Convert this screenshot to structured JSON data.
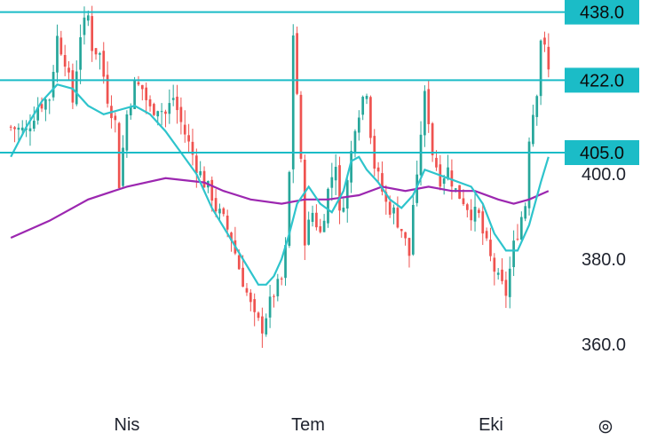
{
  "chart_data": {
    "type": "candlestick",
    "title": "",
    "xlabel": "",
    "ylabel": "",
    "ylim": [
      350,
      441
    ],
    "x_tick_labels": [
      "Nis",
      "Tem",
      "Eki"
    ],
    "y_tick_labels": [
      "360.0",
      "380.0",
      "400.0"
    ],
    "y_ticks": [
      360,
      380,
      400
    ],
    "horizontal_levels": [
      {
        "label": "438.0",
        "value": 438
      },
      {
        "label": "422.0",
        "value": 422
      },
      {
        "label": "405.0",
        "value": 405
      }
    ],
    "colors": {
      "up": "#26a69a",
      "down": "#ef5350",
      "level": "#1bbcc7",
      "ma_fast": "#2ec4cc",
      "ma_slow": "#9c27b0",
      "text": "#1e222d"
    },
    "close_path": [
      [
        0,
        411
      ],
      [
        4,
        410
      ],
      [
        7,
        416
      ],
      [
        10,
        418
      ],
      [
        12,
        432
      ],
      [
        14,
        427
      ],
      [
        16,
        417
      ],
      [
        18,
        433
      ],
      [
        20,
        437
      ],
      [
        21,
        430
      ],
      [
        23,
        428
      ],
      [
        25,
        418
      ],
      [
        27,
        412
      ],
      [
        28,
        398
      ],
      [
        30,
        414
      ],
      [
        32,
        421
      ],
      [
        34,
        420
      ],
      [
        36,
        415
      ],
      [
        38,
        416
      ],
      [
        40,
        414
      ],
      [
        42,
        418
      ],
      [
        44,
        412
      ],
      [
        46,
        407
      ],
      [
        48,
        402
      ],
      [
        50,
        398
      ],
      [
        52,
        395
      ],
      [
        53,
        392
      ],
      [
        55,
        389
      ],
      [
        57,
        385
      ],
      [
        59,
        378
      ],
      [
        61,
        372
      ],
      [
        63,
        366
      ],
      [
        65,
        364
      ],
      [
        66,
        367
      ],
      [
        68,
        372
      ],
      [
        70,
        375
      ],
      [
        71,
        382
      ],
      [
        72,
        400
      ],
      [
        73,
        433
      ],
      [
        74,
        419
      ],
      [
        75,
        402
      ],
      [
        76,
        385
      ],
      [
        78,
        391
      ],
      [
        80,
        386
      ],
      [
        82,
        396
      ],
      [
        84,
        403
      ],
      [
        85,
        390
      ],
      [
        87,
        398
      ],
      [
        89,
        412
      ],
      [
        91,
        418
      ],
      [
        92,
        420
      ],
      [
        93,
        410
      ],
      [
        94,
        402
      ],
      [
        96,
        396
      ],
      [
        97,
        393
      ],
      [
        99,
        391
      ],
      [
        101,
        387
      ],
      [
        103,
        381
      ],
      [
        104,
        393
      ],
      [
        105,
        398
      ],
      [
        106,
        410
      ],
      [
        107,
        418
      ],
      [
        108,
        413
      ],
      [
        109,
        405
      ],
      [
        111,
        399
      ],
      [
        113,
        401
      ],
      [
        115,
        396
      ],
      [
        117,
        394
      ],
      [
        119,
        391
      ],
      [
        121,
        390
      ],
      [
        122,
        386
      ],
      [
        124,
        380
      ],
      [
        126,
        375
      ],
      [
        128,
        372
      ],
      [
        130,
        383
      ],
      [
        132,
        390
      ],
      [
        133,
        393
      ],
      [
        134,
        409
      ],
      [
        136,
        420
      ],
      [
        137,
        432
      ],
      [
        138,
        429
      ],
      [
        139,
        424
      ]
    ],
    "ma_fast": [
      [
        0,
        404
      ],
      [
        4,
        411
      ],
      [
        8,
        417
      ],
      [
        12,
        421
      ],
      [
        16,
        420
      ],
      [
        20,
        416
      ],
      [
        24,
        414
      ],
      [
        28,
        415
      ],
      [
        32,
        416
      ],
      [
        36,
        414
      ],
      [
        40,
        410
      ],
      [
        44,
        405
      ],
      [
        48,
        400
      ],
      [
        52,
        392
      ],
      [
        56,
        386
      ],
      [
        60,
        380
      ],
      [
        64,
        374
      ],
      [
        66,
        374
      ],
      [
        68,
        376
      ],
      [
        70,
        380
      ],
      [
        72,
        386
      ],
      [
        74,
        393
      ],
      [
        77,
        397
      ],
      [
        80,
        393
      ],
      [
        83,
        391
      ],
      [
        86,
        396
      ],
      [
        88,
        403
      ],
      [
        90,
        404
      ],
      [
        92,
        401
      ],
      [
        95,
        398
      ],
      [
        98,
        394
      ],
      [
        101,
        392
      ],
      [
        104,
        395
      ],
      [
        107,
        401
      ],
      [
        110,
        400
      ],
      [
        113,
        399
      ],
      [
        116,
        398
      ],
      [
        119,
        397
      ],
      [
        122,
        393
      ],
      [
        125,
        386
      ],
      [
        128,
        382
      ],
      [
        131,
        382
      ],
      [
        134,
        388
      ],
      [
        137,
        398
      ],
      [
        139,
        404
      ]
    ],
    "ma_slow": [
      [
        0,
        385
      ],
      [
        10,
        389
      ],
      [
        20,
        394
      ],
      [
        30,
        397
      ],
      [
        40,
        399
      ],
      [
        50,
        398
      ],
      [
        55,
        396
      ],
      [
        62,
        394
      ],
      [
        70,
        393
      ],
      [
        76,
        394
      ],
      [
        82,
        394
      ],
      [
        90,
        395
      ],
      [
        96,
        397
      ],
      [
        102,
        396
      ],
      [
        108,
        397
      ],
      [
        114,
        396
      ],
      [
        120,
        396
      ],
      [
        126,
        394
      ],
      [
        130,
        393
      ],
      [
        134,
        394
      ],
      [
        139,
        396
      ]
    ]
  }
}
